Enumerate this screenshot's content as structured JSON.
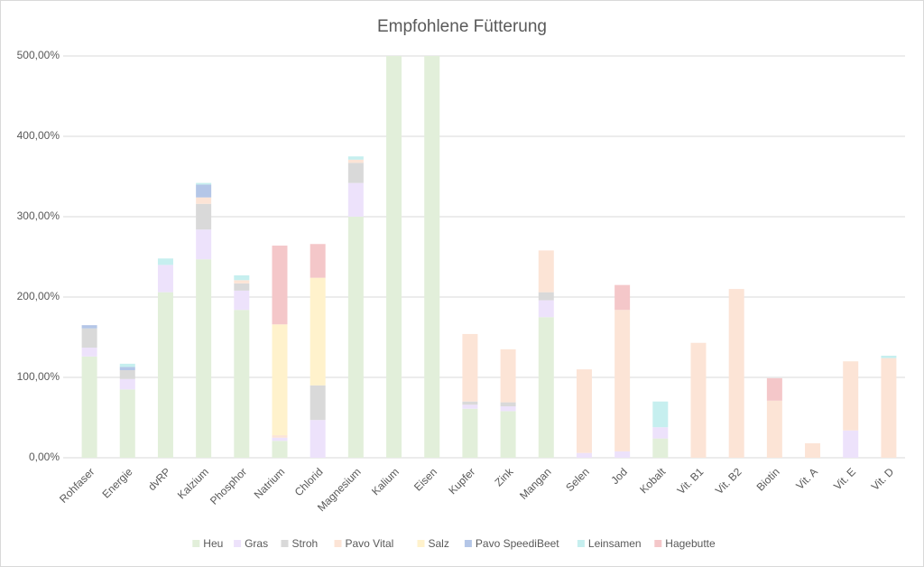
{
  "chart_data": {
    "type": "stacked_bar",
    "title": "Empfohlene Fütterung",
    "categories": [
      "Rohfaser",
      "Energie",
      "dvRP",
      "Kalzium",
      "Phosphor",
      "Natrium",
      "Chlorid",
      "Magnesium",
      "Kalium",
      "Eisen",
      "Kupfer",
      "Zink",
      "Mangan",
      "Selen",
      "Jod",
      "Kobalt",
      "Vit. B1",
      "Vit. B2",
      "Biotin",
      "Vit. A",
      "Vit. E",
      "Vit. D"
    ],
    "series": [
      {
        "name": "Heu",
        "color": "#e2efda",
        "values": [
          126,
          85,
          206,
          247,
          184,
          21,
          0,
          300,
          500,
          500,
          61,
          58,
          175,
          0,
          0,
          24,
          0,
          0,
          0,
          0,
          0,
          0
        ]
      },
      {
        "name": "Gras",
        "color": "#ede2fb",
        "values": [
          11,
          13,
          34,
          37,
          24,
          4,
          47,
          42,
          0,
          0,
          5,
          6,
          21,
          6,
          8,
          14,
          0,
          0,
          0,
          0,
          34,
          0
        ]
      },
      {
        "name": "Stroh",
        "color": "#d9d9d9",
        "values": [
          24,
          11,
          0,
          32,
          9,
          0,
          43,
          25,
          0,
          0,
          4,
          5,
          10,
          0,
          0,
          0,
          0,
          0,
          0,
          0,
          0,
          0
        ]
      },
      {
        "name": "Pavo Vital",
        "color": "#fce4d6",
        "values": [
          0,
          0,
          0,
          8,
          4,
          3,
          0,
          4,
          0,
          0,
          84,
          66,
          52,
          104,
          176,
          0,
          143,
          210,
          71,
          18,
          86,
          124
        ]
      },
      {
        "name": "Salz",
        "color": "#fff2cc",
        "values": [
          0,
          0,
          0,
          0,
          0,
          138,
          134,
          0,
          0,
          0,
          0,
          0,
          0,
          0,
          0,
          0,
          0,
          0,
          0,
          0,
          0,
          0
        ]
      },
      {
        "name": "Pavo SpeediBeet",
        "color": "#b4c6e7",
        "values": [
          4,
          4,
          0,
          16,
          0,
          0,
          0,
          0,
          0,
          0,
          0,
          0,
          0,
          0,
          0,
          0,
          0,
          0,
          0,
          0,
          0,
          0
        ]
      },
      {
        "name": "Leinsamen",
        "color": "#c6efef",
        "values": [
          0,
          4,
          8,
          2,
          6,
          0,
          0,
          4,
          0,
          0,
          0,
          0,
          0,
          0,
          0,
          32,
          0,
          0,
          0,
          0,
          0,
          3
        ]
      },
      {
        "name": "Hagebutte",
        "color": "#f4c7c9",
        "values": [
          0,
          0,
          0,
          0,
          0,
          98,
          42,
          0,
          0,
          0,
          0,
          0,
          0,
          0,
          31,
          0,
          0,
          0,
          28,
          0,
          0,
          0
        ]
      }
    ],
    "ylim": [
      0,
      500
    ],
    "yticks": [
      {
        "value": 0,
        "label": "0,00%"
      },
      {
        "value": 100,
        "label": "100,00%"
      },
      {
        "value": 200,
        "label": "200,00%"
      },
      {
        "value": 300,
        "label": "300,00%"
      },
      {
        "value": 400,
        "label": "400,00%"
      },
      {
        "value": 500,
        "label": "500,00%"
      }
    ],
    "grid": true,
    "legend": "bottom"
  }
}
